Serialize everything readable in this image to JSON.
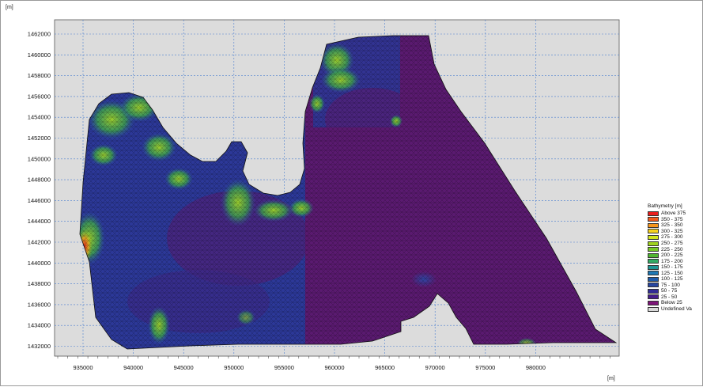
{
  "axes": {
    "y_unit": "[m]",
    "x_unit": "[m]",
    "y_ticks": [
      "1462000",
      "1460000",
      "1458000",
      "1456000",
      "1454000",
      "1452000",
      "1450000",
      "1448000",
      "1446000",
      "1444000",
      "1442000",
      "1440000",
      "1438000",
      "1436000",
      "1434000",
      "1432000"
    ],
    "x_ticks": [
      "935000",
      "940000",
      "945000",
      "950000",
      "955000",
      "960000",
      "965000",
      "970000",
      "975000",
      "980000"
    ]
  },
  "legend": {
    "title": "Bathymetry [m]",
    "items": [
      {
        "label": "Above 375",
        "color": "#e81e1e"
      },
      {
        "label": "350 - 375",
        "color": "#f05a1e"
      },
      {
        "label": "325 - 350",
        "color": "#f5961e"
      },
      {
        "label": "300 - 325",
        "color": "#f5d21e"
      },
      {
        "label": "275 - 300",
        "color": "#d2e61e"
      },
      {
        "label": "250 - 275",
        "color": "#a0d21e"
      },
      {
        "label": "225 - 250",
        "color": "#78c828"
      },
      {
        "label": "200 - 225",
        "color": "#50b432"
      },
      {
        "label": "175 - 200",
        "color": "#32aa64"
      },
      {
        "label": "150 - 175",
        "color": "#1e9696"
      },
      {
        "label": "125 - 150",
        "color": "#1e78b4"
      },
      {
        "label": "100 - 125",
        "color": "#1e5aaa"
      },
      {
        "label": "75 - 100",
        "color": "#2846a0"
      },
      {
        "label": "50 - 75",
        "color": "#322d96"
      },
      {
        "label": "25 - 50",
        "color": "#461e8c"
      },
      {
        "label": "Below 25",
        "color": "#7d1478"
      },
      {
        "label": "Undefined Va",
        "color": "#d9d9d9"
      }
    ]
  }
}
